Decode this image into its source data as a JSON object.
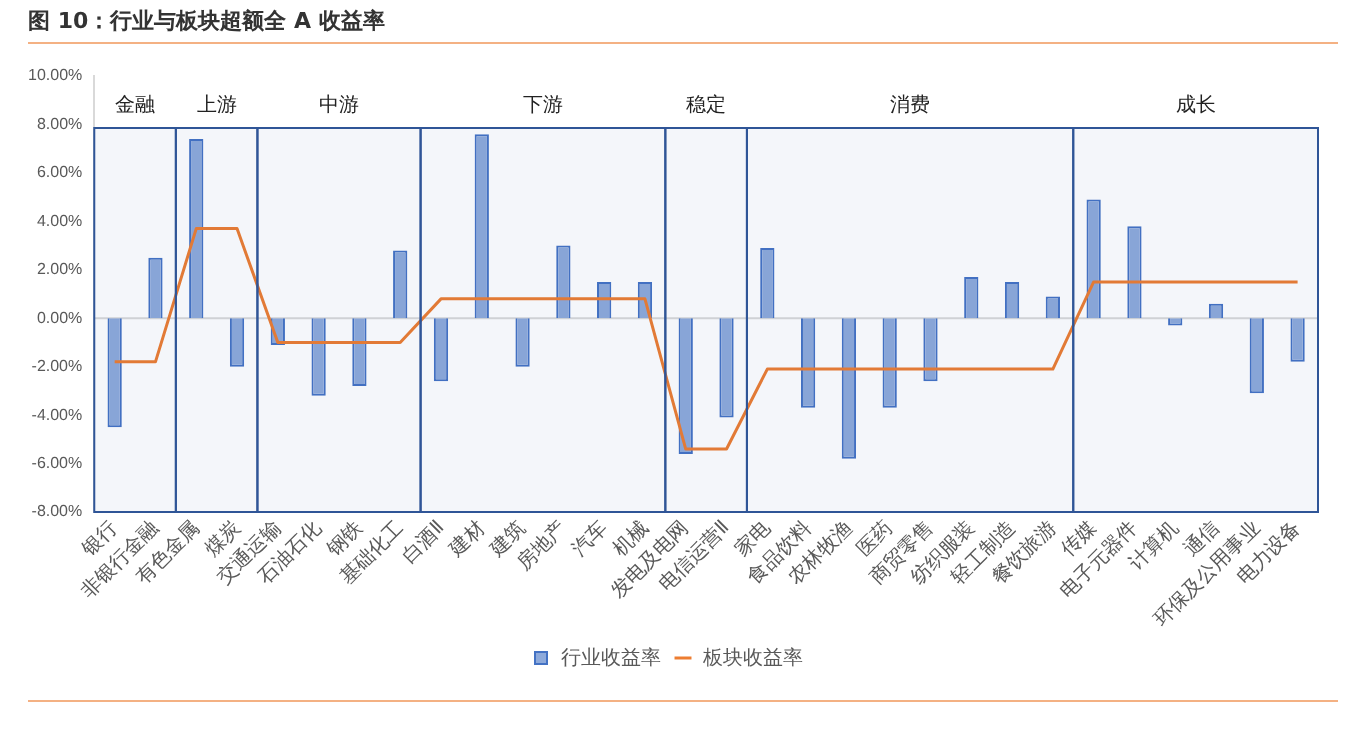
{
  "chart_data": {
    "type": "bar",
    "title": "图 10：行业与板块超额全 A 收益率",
    "categories": [
      "银行",
      "非银行金融",
      "有色金属",
      "煤炭",
      "交通运输",
      "石油石化",
      "钢铁",
      "基础化工",
      "白酒Ⅱ",
      "建材",
      "建筑",
      "房地产",
      "汽车",
      "机械",
      "发电及电网",
      "电信运营Ⅱ",
      "家电",
      "食品饮料",
      "农林牧渔",
      "医药",
      "商贸零售",
      "纺织服装",
      "轻工制造",
      "餐饮旅游",
      "传媒",
      "电子元器件",
      "计算机",
      "通信",
      "环保及公用事业",
      "电力设备"
    ],
    "series": [
      {
        "name": "行业收益率",
        "color": "#8eaadb",
        "values": [
          -4.5,
          2.5,
          7.4,
          -2.0,
          -1.1,
          -3.2,
          -2.8,
          2.8,
          -2.6,
          7.6,
          -2.0,
          3.0,
          1.5,
          1.5,
          -5.6,
          -4.1,
          2.9,
          -3.7,
          -5.8,
          -3.7,
          -2.6,
          1.7,
          1.5,
          0.9,
          4.9,
          3.8,
          -0.3,
          0.6,
          -3.1,
          -1.8
        ]
      },
      {
        "name": "板块收益率",
        "type": "line",
        "color": "#ed7d31",
        "values": [
          -1.8,
          -1.8,
          3.7,
          3.7,
          -1.0,
          -1.0,
          -1.0,
          -1.0,
          0.8,
          0.8,
          0.8,
          0.8,
          0.8,
          0.8,
          -5.4,
          -5.4,
          -2.1,
          -2.1,
          -2.1,
          -2.1,
          -2.1,
          -2.1,
          -2.1,
          -2.1,
          1.5,
          1.5,
          1.5,
          1.5,
          1.5,
          1.5
        ]
      }
    ],
    "ylim": [
      -8,
      10
    ],
    "yticks": [
      {
        "value": -8,
        "label": "-8.00%"
      },
      {
        "value": -6,
        "label": "-6.00%"
      },
      {
        "value": -4,
        "label": "-4.00%"
      },
      {
        "value": -2,
        "label": "-2.00%"
      },
      {
        "value": 0,
        "label": "0.00%"
      },
      {
        "value": 2,
        "label": "2.00%"
      },
      {
        "value": 4,
        "label": "4.00%"
      },
      {
        "value": 6,
        "label": "6.00%"
      },
      {
        "value": 8,
        "label": "8.00%"
      },
      {
        "value": 10,
        "label": "10.00%"
      }
    ],
    "grid": false,
    "legend": "bottom",
    "marker": "none",
    "line_style": "solid",
    "ref_lines": [
      {
        "axis": "y",
        "value": 0,
        "color": "#d9d9d9"
      }
    ],
    "bands": [
      {
        "axis": "x",
        "from": "银行",
        "to": "非银行金融",
        "label": "金融",
        "color": "#2f5597"
      },
      {
        "axis": "x",
        "from": "有色金属",
        "to": "煤炭",
        "label": "上游",
        "color": "#2f5597"
      },
      {
        "axis": "x",
        "from": "交通运输",
        "to": "基础化工",
        "label": "中游",
        "color": "#2f5597"
      },
      {
        "axis": "x",
        "from": "白酒Ⅱ",
        "to": "机械",
        "label": "下游",
        "color": "#2f5597"
      },
      {
        "axis": "x",
        "from": "发电及电网",
        "to": "电信运营Ⅱ",
        "label": "稳定",
        "color": "#2f5597"
      },
      {
        "axis": "x",
        "from": "家电",
        "to": "餐饮旅游",
        "label": "消费",
        "color": "#2f5597"
      },
      {
        "axis": "x",
        "from": "传媒",
        "to": "电力设备",
        "label": "成长",
        "color": "#2f5597"
      }
    ]
  }
}
